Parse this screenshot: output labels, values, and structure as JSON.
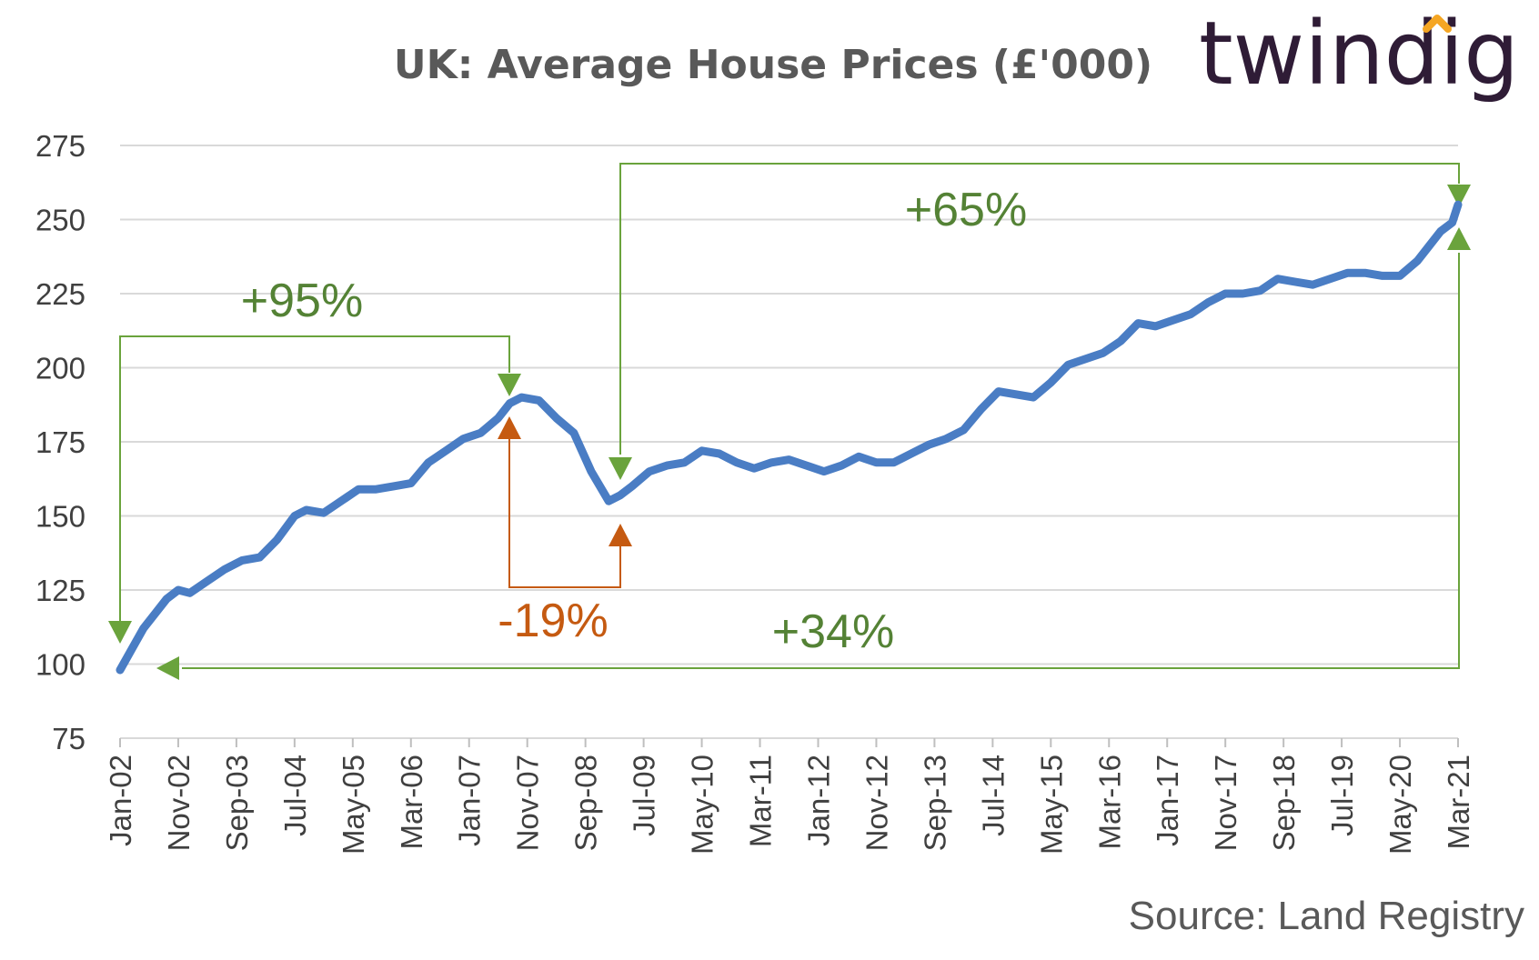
{
  "brand": {
    "logo_text": "twindig",
    "accent": "#f5a623"
  },
  "source": "Source: Land Registry",
  "colors": {
    "line": "#4a7dc4",
    "up": "#6aa33c",
    "up_text": "#548235",
    "down": "#c55a11",
    "grid": "#d9d9d9"
  },
  "chart_data": {
    "type": "line",
    "title": "UK: Average House Prices (£'000)",
    "xlabel": "",
    "ylabel": "",
    "ylim": [
      75,
      275
    ],
    "yticks": [
      75,
      100,
      125,
      150,
      175,
      200,
      225,
      250,
      275
    ],
    "xlim": [
      "Jan-02",
      "Mar-21"
    ],
    "xtick_labels": [
      "Jan-02",
      "Nov-02",
      "Sep-03",
      "Jul-04",
      "May-05",
      "Mar-06",
      "Jan-07",
      "Nov-07",
      "Sep-08",
      "Jul-09",
      "May-10",
      "Mar-11",
      "Jan-12",
      "Nov-12",
      "Sep-13",
      "Jul-14",
      "May-15",
      "Mar-16",
      "Jan-17",
      "Nov-17",
      "Sep-18",
      "Jul-19",
      "May-20",
      "Mar-21"
    ],
    "grid": true,
    "legend": "none",
    "series": [
      {
        "x": [
          "Jan-02",
          "Mar-02",
          "May-02",
          "Jul-02",
          "Sep-02",
          "Nov-02",
          "Jan-03",
          "Apr-03",
          "Jul-03",
          "Oct-03",
          "Jan-04",
          "Apr-04",
          "Jul-04",
          "Sep-04",
          "Dec-04",
          "Mar-05",
          "Jun-05",
          "Sep-05",
          "Dec-05",
          "Mar-06",
          "Jun-06",
          "Sep-06",
          "Dec-06",
          "Mar-07",
          "Jun-07",
          "Aug-07",
          "Oct-07",
          "Jan-08",
          "Apr-08",
          "Jul-08",
          "Oct-08",
          "Jan-09",
          "Mar-09",
          "May-09",
          "Aug-09",
          "Nov-09",
          "Feb-10",
          "May-10",
          "Aug-10",
          "Nov-10",
          "Feb-11",
          "May-11",
          "Aug-11",
          "Nov-11",
          "Feb-12",
          "May-12",
          "Aug-12",
          "Nov-12",
          "Feb-13",
          "May-13",
          "Aug-13",
          "Nov-13",
          "Feb-14",
          "May-14",
          "Aug-14",
          "Nov-14",
          "Feb-15",
          "May-15",
          "Aug-15",
          "Nov-15",
          "Feb-16",
          "May-16",
          "Aug-16",
          "Nov-16",
          "Feb-17",
          "May-17",
          "Aug-17",
          "Nov-17",
          "Feb-18",
          "May-18",
          "Aug-18",
          "Nov-18",
          "Feb-19",
          "May-19",
          "Aug-19",
          "Nov-19",
          "Feb-20",
          "May-20",
          "Aug-20",
          "Oct-20",
          "Dec-20",
          "Feb-21",
          "Mar-21"
        ],
        "values": [
          98,
          105,
          112,
          117,
          122,
          125,
          124,
          128,
          132,
          135,
          136,
          142,
          150,
          152,
          151,
          155,
          159,
          159,
          160,
          161,
          168,
          172,
          176,
          178,
          183,
          188,
          190,
          189,
          183,
          178,
          165,
          155,
          157,
          160,
          165,
          167,
          168,
          172,
          171,
          168,
          166,
          168,
          169,
          167,
          165,
          167,
          170,
          168,
          168,
          171,
          174,
          176,
          179,
          186,
          192,
          191,
          190,
          195,
          201,
          203,
          205,
          209,
          215,
          214,
          216,
          218,
          222,
          225,
          225,
          226,
          230,
          229,
          228,
          230,
          232,
          232,
          231,
          231,
          236,
          241,
          246,
          249,
          255
        ]
      }
    ],
    "annotations": [
      {
        "text": "+95%",
        "color": "up"
      },
      {
        "text": "-19%",
        "color": "down"
      },
      {
        "text": "+65%",
        "color": "up"
      },
      {
        "text": "+34%",
        "color": "up"
      }
    ]
  }
}
